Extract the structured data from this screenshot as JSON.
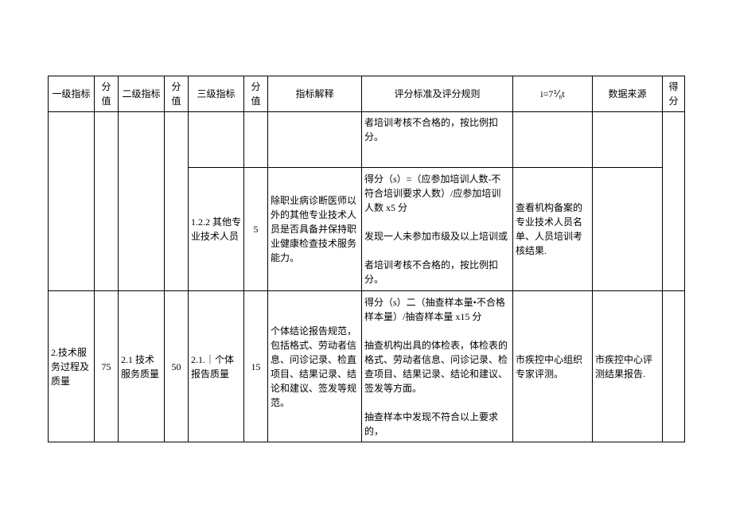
{
  "header": {
    "col1": "一级指标",
    "col2": "分值",
    "col3": "二级指标",
    "col4": "分值",
    "col5": "三级指标",
    "col6": "分值",
    "col7": "指标解释",
    "col8": "评分标准及评分规则",
    "col9": "i=7⅟₈t",
    "col10": "数据来源",
    "col11": "得分"
  },
  "row1": {
    "col8": "者培训考核不合格的，按比例扣分。"
  },
  "row2": {
    "col5": "1.2.2 其他专业技术人员",
    "col6": "5",
    "col7": "除职业病诊断医师以外的其他专业技术人员是否具备并保持职业健康检查技术服务能力。",
    "col8": "得分（s）=（应参加培训人数-不符合培训要求人数）/应参加培训人数 x5 分\n\n发现一人未参加市级及以上培训或\n\n者培训考核不合格的，按比例扣分。",
    "col9": "查看机构备案的专业技术人员名单、人员培训考核结果."
  },
  "row3": {
    "col1": "2.技术服务过程及质量",
    "col2": "75",
    "col3": "2.1 技术服务质量",
    "col4": "50",
    "col5": "2.1.｜个体报告质量",
    "col6": "15",
    "col7": "个体结论报告规范，包括格式、劳动者信息、问诊记录、检直项目、结果记录、结论和建议、签发等规范。",
    "col8": "得分（s）二（抽查样本量•不合格样本量）/抽杳样本量 x15 分\n\n抽查机构出具的体检表，体检表的格式、劳动者信息、问诊记录、检查项目、结果记录、结论和建议、签发等方面。\n\n抽查样本中发现不符合以上要求的，",
    "col9": "市疾控中心组织专家评测。",
    "col10": "市疾控中心评测结果报告."
  },
  "widths": {
    "c1": 58,
    "c2": 30,
    "c3": 58,
    "c4": 30,
    "c5": 70,
    "c6": 30,
    "c7": 118,
    "c8": 190,
    "c9": 100,
    "c10": 88,
    "c11": 28
  }
}
